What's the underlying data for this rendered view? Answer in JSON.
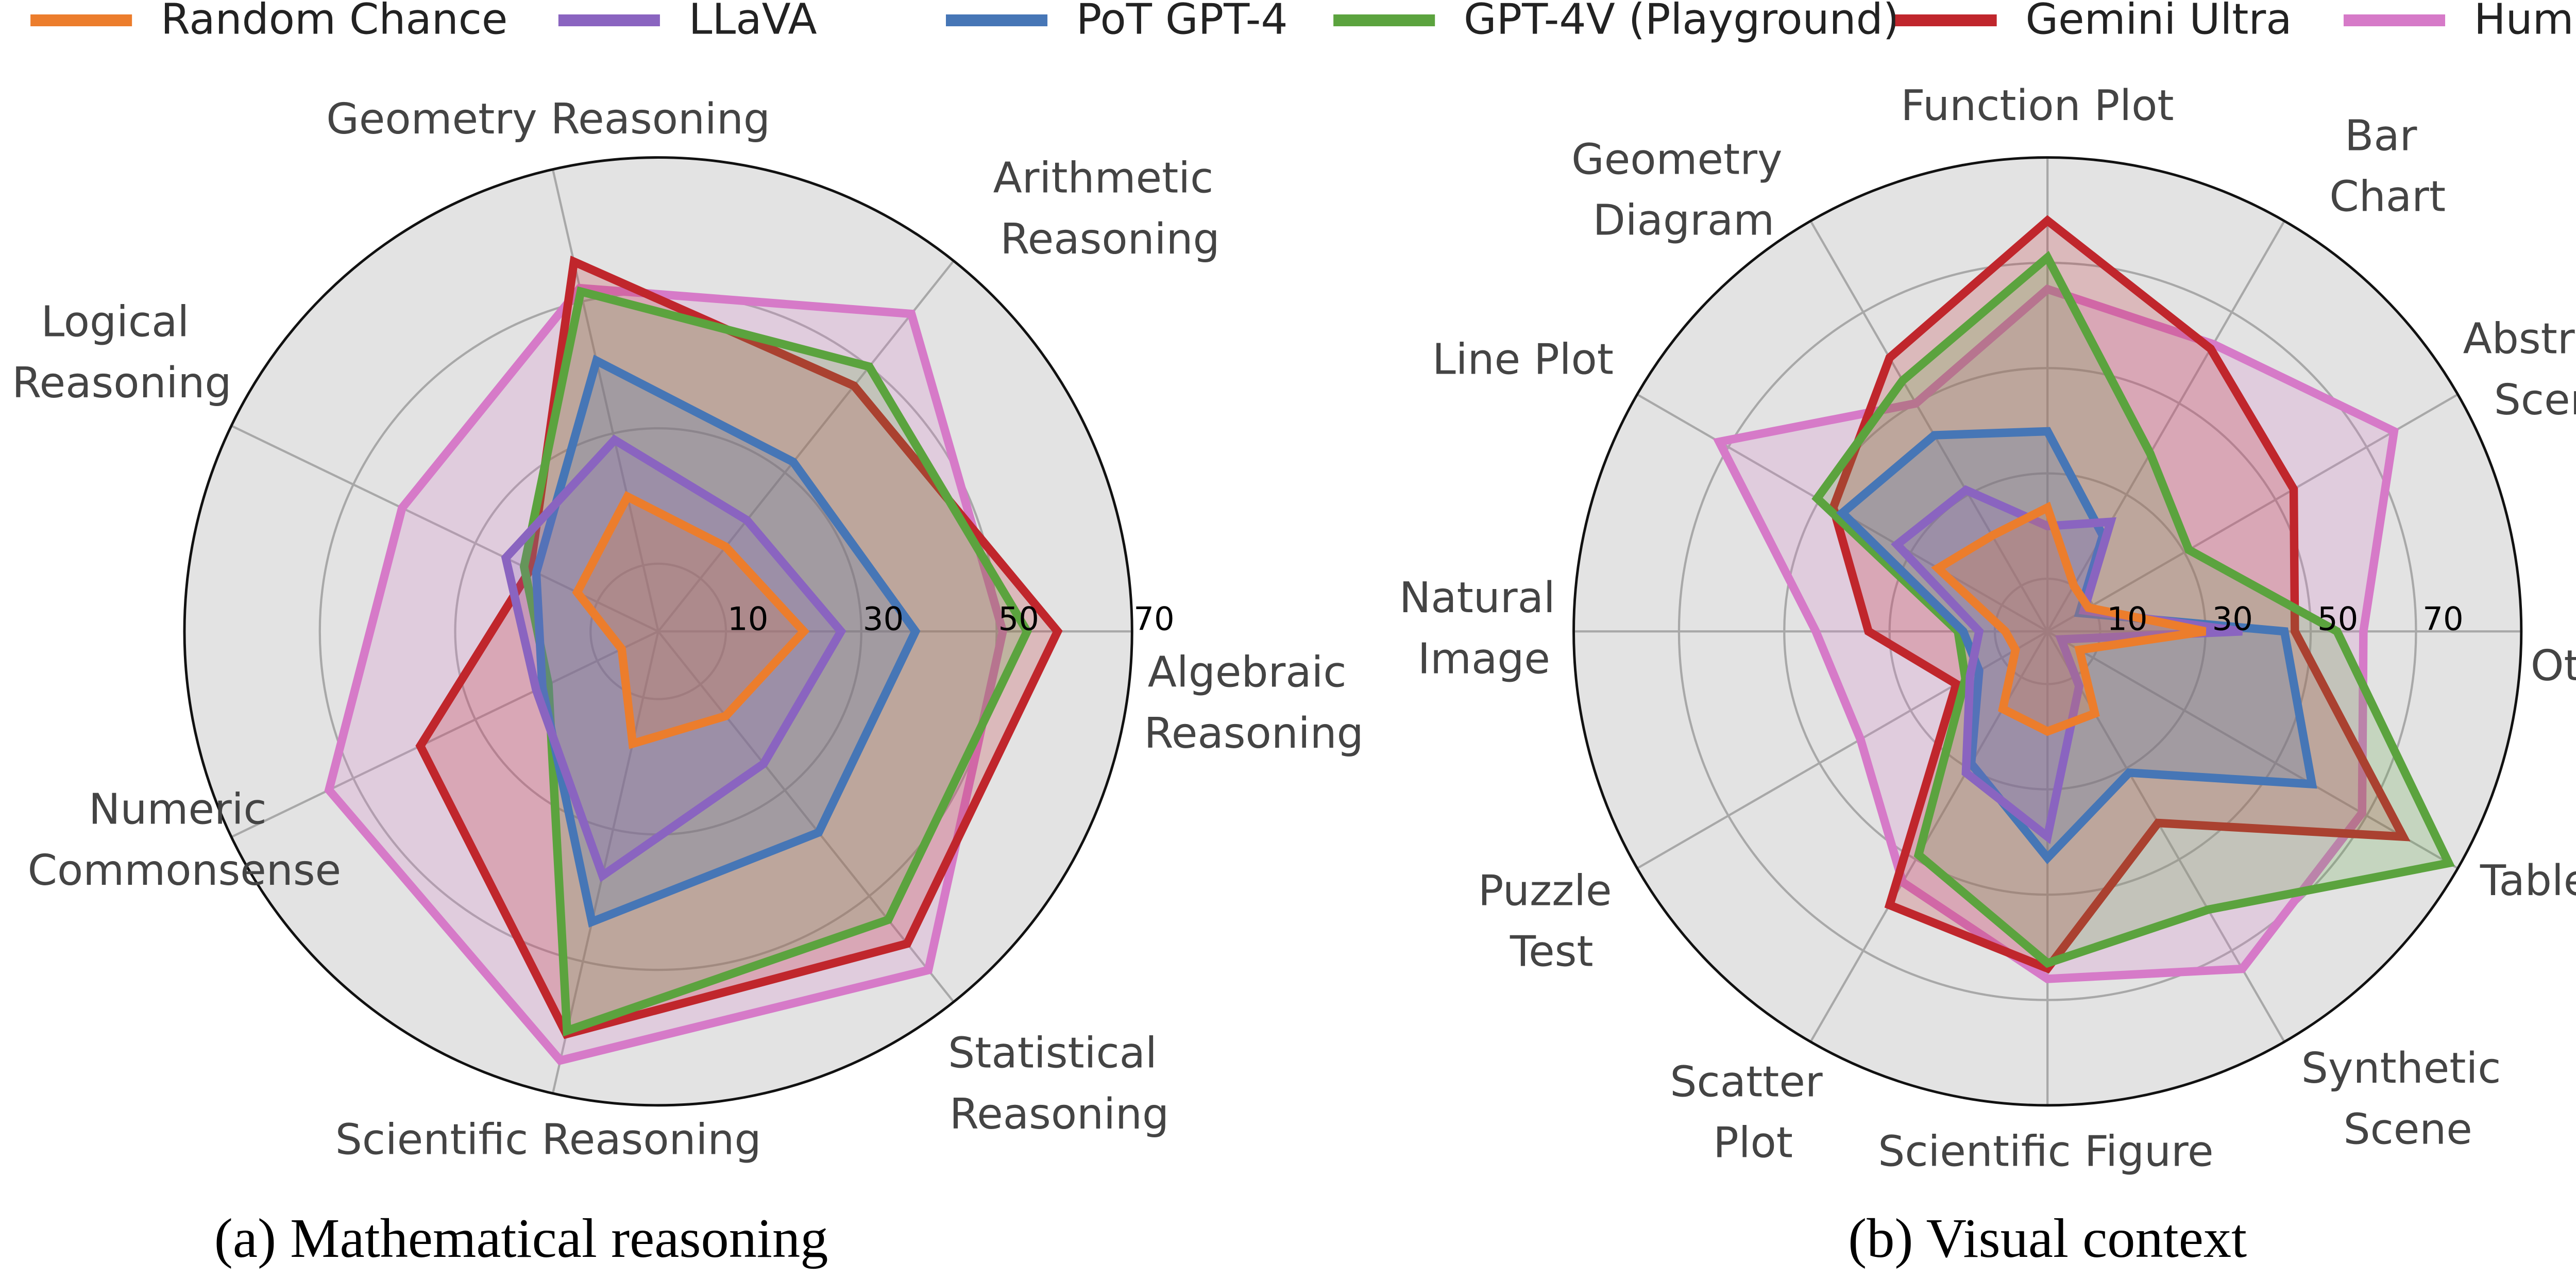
{
  "chart_data": [
    {
      "type": "radar",
      "caption": "(a) Mathematical reasoning",
      "categories": [
        "Algebraic Reasoning",
        "Arithmetic Reasoning",
        "Geometry Reasoning",
        "Logical Reasoning",
        "Numeric Commonsense",
        "Scientific Reasoning",
        "Statistical Reasoning"
      ],
      "rlim": [
        0,
        70
      ],
      "rticks": [
        10,
        30,
        50,
        70
      ],
      "series": [
        {
          "name": "Random Chance",
          "color": "#ec7d2c",
          "values": [
            21.5,
            16,
            20.4,
            13.3,
            6,
            17,
            16
          ]
        },
        {
          "name": "LLaVA",
          "color": "#8a64c0",
          "values": [
            27,
            21,
            29,
            25,
            20,
            37,
            25
          ]
        },
        {
          "name": "PoT GPT-4",
          "color": "#4676b6",
          "values": [
            38,
            32,
            41,
            20,
            19,
            44,
            38
          ]
        },
        {
          "name": "GPT-4V (Playground)",
          "color": "#5ba33e",
          "values": [
            54.5,
            50,
            51.5,
            22,
            18,
            60.5,
            54.5
          ]
        },
        {
          "name": "Gemini Ultra",
          "color": "#c0262c",
          "values": [
            59,
            46.4,
            56,
            21,
            39,
            61,
            59
          ]
        },
        {
          "name": "Human",
          "color": "#d67ac8",
          "values": [
            50.9,
            60,
            52,
            42,
            54,
            65,
            64
          ]
        }
      ]
    },
    {
      "type": "radar",
      "caption": "(b) Visual context",
      "categories": [
        "Other",
        "Abstract Scene",
        "Bar Chart",
        "Function Plot",
        "Geometry Diagram",
        "Line Plot",
        "Natural Image",
        "Puzzle Test",
        "Scatter Plot",
        "Scientific Figure",
        "Synthetic Scene",
        "Table"
      ],
      "rlim": [
        0,
        90
      ],
      "rticks": [
        10,
        30,
        50,
        70
      ],
      "series": [
        {
          "values": [
            30,
            9,
            10,
            23.5,
            21,
            24,
            8,
            7,
            17,
            19,
            18,
            7
          ]
        },
        {
          "values": [
            37,
            8,
            24,
            20,
            31,
            33,
            13,
            17,
            31,
            39,
            12,
            3
          ]
        },
        {
          "values": [
            45,
            7,
            21,
            38,
            43,
            45,
            16,
            15,
            29,
            43,
            31,
            58
          ]
        },
        {
          "values": [
            55,
            31,
            39,
            71,
            55,
            50.5,
            17,
            18,
            49,
            63,
            61,
            88
          ]
        },
        {
          "values": [
            47,
            54,
            62,
            78,
            60,
            47,
            34,
            20,
            60,
            64,
            42,
            78
          ]
        },
        {
          "values": [
            60,
            76,
            63,
            65,
            50,
            72,
            44,
            41,
            55,
            66,
            74,
            69
          ]
        }
      ]
    }
  ]
}
